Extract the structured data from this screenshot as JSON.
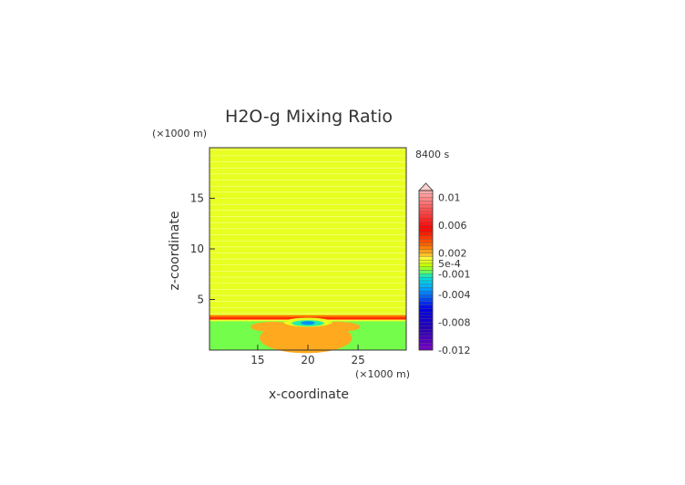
{
  "chart_data": {
    "type": "heatmap",
    "title": "H2O-g Mixing Ratio",
    "time_label": "8400 s",
    "xlabel": "x-coordinate",
    "ylabel": "z-coordinate",
    "x_unit": "(×1000 m)",
    "y_unit": "(×1000 m)",
    "xlim": [
      10.2,
      29.8
    ],
    "ylim": [
      0,
      20
    ],
    "x_ticks": [
      15,
      20,
      25
    ],
    "y_ticks": [
      5,
      10,
      15
    ],
    "colorbar": {
      "min": -0.012,
      "max": 0.011,
      "labels": [
        {
          "text": "0.01",
          "value": 0.01
        },
        {
          "text": "0.006",
          "value": 0.006
        },
        {
          "text": "0.002",
          "value": 0.002
        },
        {
          "text": "5e-4",
          "value": 0.0005
        },
        {
          "text": "-0.001",
          "value": -0.001
        },
        {
          "text": "-0.004",
          "value": -0.004
        },
        {
          "text": "-0.008",
          "value": -0.008
        },
        {
          "text": "-0.012",
          "value": -0.012
        }
      ]
    },
    "field": {
      "background_value": 0.0008,
      "bands": [
        {
          "z_from": 3.25,
          "z_to": 3.45,
          "value": 0.003
        },
        {
          "z_from": 3.0,
          "z_to": 3.25,
          "value": 0.0045
        },
        {
          "z_from": 2.85,
          "z_to": 3.0,
          "value": 0.001
        },
        {
          "z_from": 0,
          "z_to": 2.85,
          "value": -0.0006
        }
      ],
      "blobs": [
        {
          "x": 19.8,
          "z": 1.2,
          "rx": 4.6,
          "rz": 1.5,
          "value": 0.0021
        },
        {
          "x": 16.5,
          "z": 2.3,
          "rx": 2.2,
          "rz": 0.5,
          "value": 0.0021
        },
        {
          "x": 23.0,
          "z": 2.3,
          "rx": 2.2,
          "rz": 0.5,
          "value": 0.0021
        },
        {
          "x": 20.0,
          "z": 2.75,
          "rx": 2.4,
          "rz": 0.45,
          "value": 0.0008
        },
        {
          "x": 20.0,
          "z": 2.65,
          "rx": 1.6,
          "rz": 0.3,
          "value": -0.0012
        },
        {
          "x": 20.0,
          "z": 2.68,
          "rx": 0.7,
          "rz": 0.18,
          "value": -0.0035
        }
      ]
    }
  }
}
